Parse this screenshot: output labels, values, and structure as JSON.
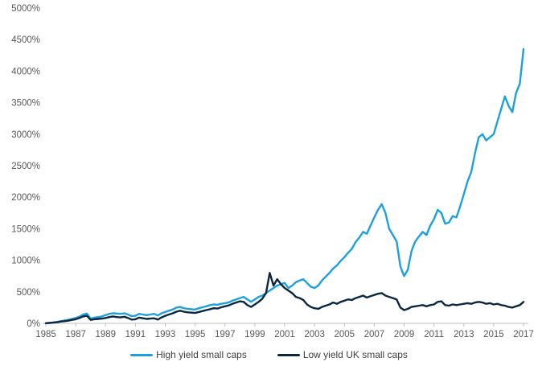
{
  "page": {
    "background": "#ffffff"
  },
  "chart_data": {
    "type": "line",
    "title": "",
    "xlabel": "",
    "ylabel": "",
    "grid": false,
    "legend_position": "bottom-center",
    "xlim": [
      1985,
      2017
    ],
    "ylim": [
      0,
      5000
    ],
    "axis_color": "#BFBFBF",
    "tick_label_color": "#595959",
    "y_ticks": [
      {
        "value": 0,
        "label": "0%"
      },
      {
        "value": 500,
        "label": "500%"
      },
      {
        "value": 1000,
        "label": "1000%"
      },
      {
        "value": 1500,
        "label": "1500%"
      },
      {
        "value": 2000,
        "label": "2000%"
      },
      {
        "value": 2500,
        "label": "2500%"
      },
      {
        "value": 3000,
        "label": "3000%"
      },
      {
        "value": 3500,
        "label": "3500%"
      },
      {
        "value": 4000,
        "label": "4000%"
      },
      {
        "value": 4500,
        "label": "4500%"
      },
      {
        "value": 5000,
        "label": "5000%"
      }
    ],
    "x_ticks": [
      {
        "value": 1985,
        "label": "1985"
      },
      {
        "value": 1987,
        "label": "1987"
      },
      {
        "value": 1989,
        "label": "1989"
      },
      {
        "value": 1991,
        "label": "1991"
      },
      {
        "value": 1993,
        "label": "1993"
      },
      {
        "value": 1995,
        "label": "1995"
      },
      {
        "value": 1997,
        "label": "1997"
      },
      {
        "value": 1999,
        "label": "1999"
      },
      {
        "value": 2001,
        "label": "2001"
      },
      {
        "value": 2003,
        "label": "2003"
      },
      {
        "value": 2005,
        "label": "2005"
      },
      {
        "value": 2007,
        "label": "2007"
      },
      {
        "value": 2009,
        "label": "2009"
      },
      {
        "value": 2011,
        "label": "2011"
      },
      {
        "value": 2013,
        "label": "2013"
      },
      {
        "value": 2015,
        "label": "2015"
      },
      {
        "value": 2017,
        "label": "2017"
      }
    ],
    "x": [
      1985,
      1985.25,
      1985.5,
      1985.75,
      1986,
      1986.25,
      1986.5,
      1986.75,
      1987,
      1987.25,
      1987.5,
      1987.75,
      1988,
      1988.25,
      1988.5,
      1988.75,
      1989,
      1989.25,
      1989.5,
      1989.75,
      1990,
      1990.25,
      1990.5,
      1990.75,
      1991,
      1991.25,
      1991.5,
      1991.75,
      1992,
      1992.25,
      1992.5,
      1992.75,
      1993,
      1993.25,
      1993.5,
      1993.75,
      1994,
      1994.25,
      1994.5,
      1994.75,
      1995,
      1995.25,
      1995.5,
      1995.75,
      1996,
      1996.25,
      1996.5,
      1996.75,
      1997,
      1997.25,
      1997.5,
      1997.75,
      1998,
      1998.25,
      1998.5,
      1998.75,
      1999,
      1999.25,
      1999.5,
      1999.75,
      2000,
      2000.25,
      2000.5,
      2000.75,
      2001,
      2001.25,
      2001.5,
      2001.75,
      2002,
      2002.25,
      2002.5,
      2002.75,
      2003,
      2003.25,
      2003.5,
      2003.75,
      2004,
      2004.25,
      2004.5,
      2004.75,
      2005,
      2005.25,
      2005.5,
      2005.75,
      2006,
      2006.25,
      2006.5,
      2006.75,
      2007,
      2007.25,
      2007.5,
      2007.75,
      2008,
      2008.25,
      2008.5,
      2008.75,
      2009,
      2009.25,
      2009.5,
      2009.75,
      2010,
      2010.25,
      2010.5,
      2010.75,
      2011,
      2011.25,
      2011.5,
      2011.75,
      2012,
      2012.25,
      2012.5,
      2012.75,
      2013,
      2013.25,
      2013.5,
      2013.75,
      2014,
      2014.25,
      2014.5,
      2014.75,
      2015,
      2015.25,
      2015.5,
      2015.75,
      2016,
      2016.25,
      2016.5,
      2016.75,
      2017
    ],
    "series": [
      {
        "name": "High yield small caps",
        "color": "#1CA0DF",
        "values": [
          2,
          8,
          15,
          22,
          35,
          45,
          55,
          70,
          85,
          105,
          140,
          155,
          75,
          90,
          100,
          110,
          130,
          150,
          160,
          155,
          150,
          160,
          140,
          115,
          120,
          150,
          140,
          130,
          140,
          150,
          125,
          160,
          180,
          200,
          220,
          250,
          260,
          240,
          230,
          225,
          220,
          240,
          255,
          270,
          290,
          300,
          295,
          310,
          320,
          330,
          360,
          380,
          400,
          420,
          380,
          340,
          380,
          420,
          440,
          480,
          520,
          560,
          600,
          620,
          640,
          560,
          600,
          650,
          680,
          700,
          640,
          580,
          560,
          600,
          680,
          740,
          800,
          870,
          920,
          990,
          1050,
          1120,
          1180,
          1290,
          1360,
          1450,
          1420,
          1550,
          1680,
          1800,
          1890,
          1750,
          1500,
          1400,
          1300,
          900,
          750,
          850,
          1150,
          1300,
          1380,
          1450,
          1400,
          1550,
          1650,
          1800,
          1750,
          1580,
          1600,
          1700,
          1680,
          1850,
          2050,
          2250,
          2400,
          2700,
          2950,
          3000,
          2900,
          2950,
          3000,
          3200,
          3400,
          3600,
          3450,
          3350,
          3650,
          3800,
          4350
        ]
      },
      {
        "name": "Low yield UK small caps",
        "color": "#0B2740",
        "values": [
          2,
          6,
          12,
          18,
          28,
          35,
          42,
          55,
          65,
          85,
          110,
          120,
          55,
          65,
          70,
          75,
          85,
          100,
          110,
          100,
          95,
          105,
          85,
          60,
          65,
          90,
          80,
          70,
          75,
          80,
          60,
          95,
          120,
          140,
          160,
          185,
          200,
          185,
          175,
          170,
          165,
          180,
          195,
          210,
          225,
          240,
          235,
          255,
          270,
          285,
          310,
          330,
          350,
          340,
          290,
          260,
          300,
          340,
          390,
          480,
          800,
          600,
          700,
          620,
          560,
          520,
          480,
          420,
          400,
          370,
          300,
          260,
          240,
          230,
          260,
          280,
          300,
          330,
          310,
          340,
          360,
          380,
          370,
          400,
          420,
          440,
          410,
          430,
          450,
          470,
          480,
          440,
          420,
          400,
          380,
          250,
          210,
          230,
          260,
          270,
          280,
          290,
          270,
          290,
          300,
          340,
          350,
          290,
          280,
          300,
          290,
          300,
          310,
          320,
          310,
          330,
          340,
          330,
          310,
          320,
          300,
          310,
          290,
          280,
          260,
          250,
          270,
          290,
          340
        ]
      }
    ]
  },
  "legend": {
    "items": [
      {
        "label": "High yield small caps"
      },
      {
        "label": "Low yield UK small caps"
      }
    ]
  }
}
